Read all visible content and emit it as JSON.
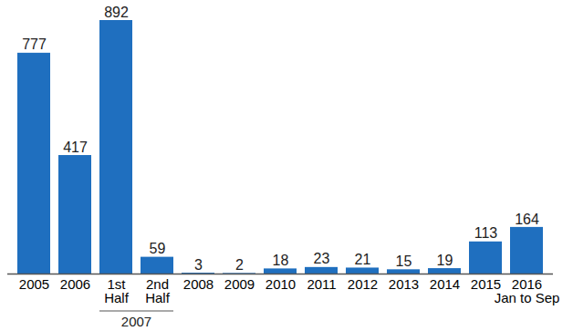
{
  "chart_data": {
    "type": "bar",
    "categories": [
      "2005",
      "2006",
      "1st\nHalf",
      "2nd\nHalf",
      "2008",
      "2009",
      "2010",
      "2011",
      "2012",
      "2013",
      "2014",
      "2015",
      "2016\nJan to Sep"
    ],
    "values": [
      777,
      417,
      892,
      59,
      3,
      2,
      18,
      23,
      21,
      15,
      19,
      113,
      164
    ],
    "color": "#1f6fbf",
    "ylim": [
      0,
      892
    ],
    "data_labels": true,
    "tick_labels": "x",
    "grid": false,
    "annotations": [
      {
        "text": "2007",
        "span": [
          "1st\nHalf",
          "2nd\nHalf"
        ]
      }
    ]
  }
}
